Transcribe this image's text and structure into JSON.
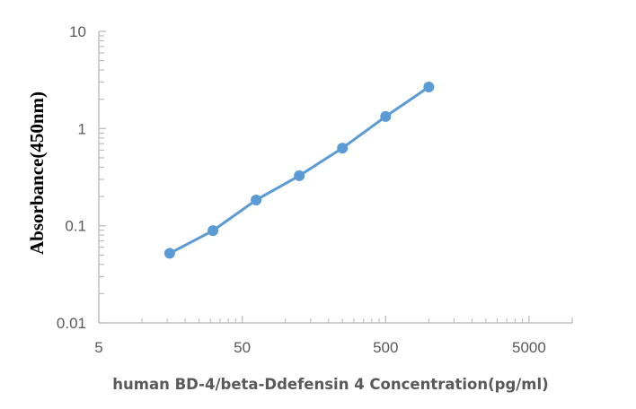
{
  "chart_data": {
    "type": "line",
    "title": "",
    "xlabel": "human BD-4/beta-Ddefensin 4 Concentration(pg/ml)",
    "ylabel": "Absorbance(450nm)",
    "x_scale": "log",
    "y_scale": "log",
    "xlim": [
      5,
      10000
    ],
    "ylim": [
      0.01,
      10
    ],
    "x_ticks": [
      "5",
      "50",
      "500",
      "5000"
    ],
    "x_tick_values": [
      5,
      50,
      500,
      5000
    ],
    "y_ticks": [
      "10",
      "1",
      "0.1",
      "0.01"
    ],
    "y_tick_values": [
      10,
      1,
      0.1,
      0.01
    ],
    "grid": false,
    "legend": "none",
    "series": [
      {
        "color": "#5b9bd5",
        "marker": "circle",
        "x": [
          15.6,
          31.25,
          62.5,
          125,
          250,
          500,
          1000
        ],
        "y": [
          0.052,
          0.089,
          0.184,
          0.327,
          0.63,
          1.33,
          2.68
        ]
      }
    ]
  }
}
